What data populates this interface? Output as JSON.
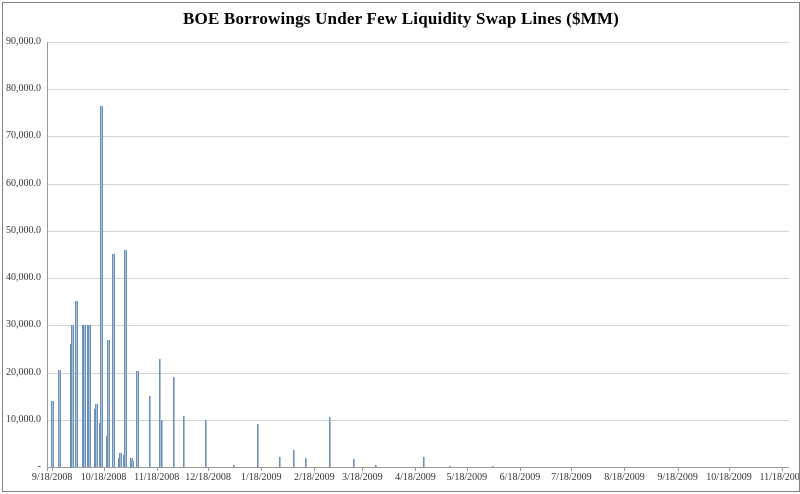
{
  "window": {
    "background": "#ffffff",
    "border_color": "#808080"
  },
  "chart_data": {
    "type": "bar",
    "title": "BOE Borrowings Under Few Liquidity Swap Lines ($MM)",
    "xlabel": "",
    "ylabel": "",
    "ylim": [
      0,
      90000
    ],
    "y_tick_interval": 10000,
    "y_tick_labels": [
      "-",
      "10,000.0",
      "20,000.0",
      "30,000.0",
      "40,000.0",
      "50,000.0",
      "60,000.0",
      "70,000.0",
      "80,000.0",
      "90,000.0"
    ],
    "x_tick_labels": [
      "9/18/2008",
      "10/18/2008",
      "11/18/2008",
      "12/18/2008",
      "1/18/2009",
      "2/18/2009",
      "3/18/2009",
      "4/18/2009",
      "5/18/2009",
      "6/18/2009",
      "7/18/2009",
      "8/18/2009",
      "9/18/2009",
      "10/18/2009",
      "11/18/2009"
    ],
    "x_range": [
      "9/15/2008",
      "11/22/2009"
    ],
    "grid": "horizontal",
    "legend": "none",
    "colors": {
      "bar_fill": "#A9C0D8",
      "bar_edge": "#6A90B8",
      "gridline": "#D4D4D4",
      "axis_line": "#9A9A9A",
      "title_text": "#000000",
      "tick_text": "#333333"
    },
    "points": [
      {
        "date": "9/18/2008",
        "value": 14000
      },
      {
        "date": "9/22/2008",
        "value": 20500
      },
      {
        "date": "9/29/2008",
        "value": 26000
      },
      {
        "date": "9/30/2008",
        "value": 30000
      },
      {
        "date": "10/2/2008",
        "value": 35100
      },
      {
        "date": "10/6/2008",
        "value": 30000
      },
      {
        "date": "10/7/2008",
        "value": 30000
      },
      {
        "date": "10/9/2008",
        "value": 30000
      },
      {
        "date": "10/10/2008",
        "value": 30000
      },
      {
        "date": "10/13/2008",
        "value": 12300
      },
      {
        "date": "10/14/2008",
        "value": 13300
      },
      {
        "date": "10/16/2008",
        "value": 9400
      },
      {
        "date": "10/17/2008",
        "value": 76500
      },
      {
        "date": "10/20/2008",
        "value": 6600
      },
      {
        "date": "10/21/2008",
        "value": 27000
      },
      {
        "date": "10/24/2008",
        "value": 45200
      },
      {
        "date": "10/27/2008",
        "value": 2000
      },
      {
        "date": "10/28/2008",
        "value": 3000
      },
      {
        "date": "10/30/2008",
        "value": 2500
      },
      {
        "date": "10/31/2008",
        "value": 46000
      },
      {
        "date": "11/3/2008",
        "value": 2000
      },
      {
        "date": "11/4/2008",
        "value": 1200
      },
      {
        "date": "11/7/2008",
        "value": 20400
      },
      {
        "date": "11/14/2008",
        "value": 15100
      },
      {
        "date": "11/20/2008",
        "value": 22900
      },
      {
        "date": "11/21/2008",
        "value": 10000
      },
      {
        "date": "11/28/2008",
        "value": 19100
      },
      {
        "date": "12/4/2008",
        "value": 10900
      },
      {
        "date": "12/17/2008",
        "value": 10000
      },
      {
        "date": "1/2/2009",
        "value": 400
      },
      {
        "date": "1/16/2009",
        "value": 9100
      },
      {
        "date": "1/29/2009",
        "value": 2100
      },
      {
        "date": "2/6/2009",
        "value": 3600
      },
      {
        "date": "2/13/2009",
        "value": 2000
      },
      {
        "date": "2/27/2009",
        "value": 10600
      },
      {
        "date": "3/13/2009",
        "value": 1800
      },
      {
        "date": "3/26/2009",
        "value": 400
      },
      {
        "date": "4/23/2009",
        "value": 2100
      },
      {
        "date": "5/8/2009",
        "value": 300
      },
      {
        "date": "6/2/2009",
        "value": 200
      }
    ]
  }
}
